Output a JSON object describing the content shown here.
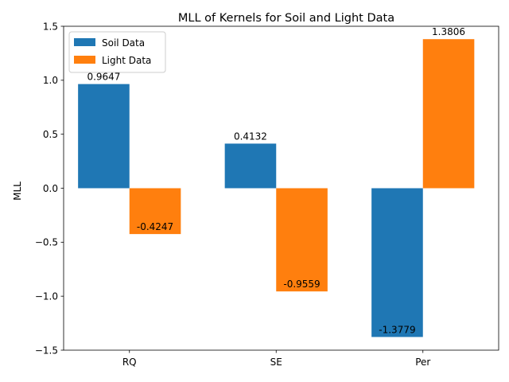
{
  "chart_data": {
    "type": "bar",
    "title": "MLL of Kernels for Soil and Light Data",
    "xlabel": "",
    "ylabel": "MLL",
    "categories": [
      "RQ",
      "SE",
      "Per"
    ],
    "series": [
      {
        "name": "Soil Data",
        "values": [
          0.9647,
          0.4132,
          -1.3779
        ],
        "labels": [
          "0.9647",
          "0.4132",
          "-1.3779"
        ],
        "color": "#1f77b4"
      },
      {
        "name": "Light Data",
        "values": [
          -0.4247,
          -0.9559,
          1.3806
        ],
        "labels": [
          "-0.4247",
          "-0.9559",
          "1.3806"
        ],
        "color": "#ff7f0e"
      }
    ],
    "ylim": [
      -1.5,
      1.5
    ],
    "yticks": [
      -1.5,
      -1.0,
      -0.5,
      0.0,
      0.5,
      1.0,
      1.5
    ],
    "ytick_labels": [
      "−1.5",
      "−1.0",
      "−0.5",
      "0.0",
      "0.5",
      "1.0",
      "1.5"
    ],
    "grid": false,
    "legend": "top-left"
  }
}
